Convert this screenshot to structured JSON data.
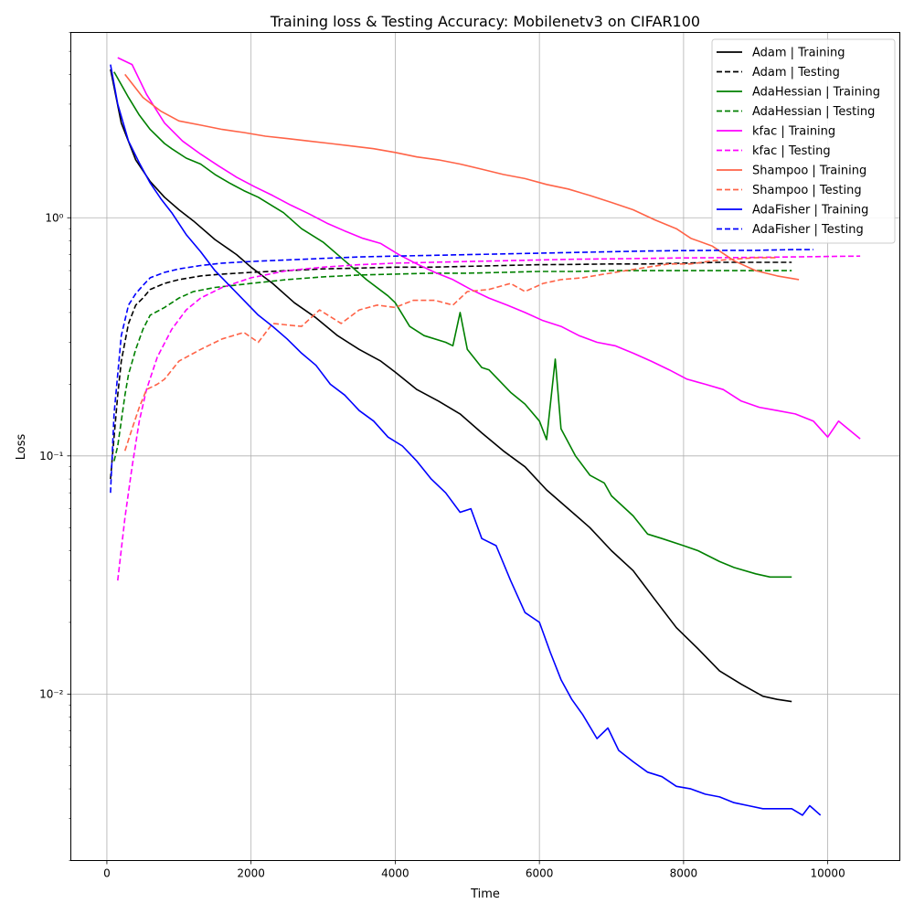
{
  "chart_data": {
    "type": "line",
    "title": "Training loss & Testing Accuracy: Mobilenetv3 on CIFAR100",
    "xlabel": "Time",
    "ylabel": "Loss",
    "xlim": [
      -500,
      11000
    ],
    "ylim": [
      0.002,
      6.0
    ],
    "yscale": "log",
    "grid": true,
    "legend_position": "top-right",
    "x_ticks": [
      0,
      2000,
      4000,
      6000,
      8000,
      10000
    ],
    "x_tick_labels": [
      "0",
      "2000",
      "4000",
      "6000",
      "8000",
      "10000"
    ],
    "y_ticks": [
      0.01,
      0.1,
      1
    ],
    "y_tick_labels": [
      "10⁻²",
      "10⁻¹",
      "10⁰"
    ],
    "series": [
      {
        "name": "Adam | Training",
        "color": "#000000",
        "dashed": false,
        "x": [
          50,
          200,
          400,
          600,
          800,
          1000,
          1200,
          1500,
          1800,
          2000,
          2300,
          2600,
          2900,
          3200,
          3500,
          3800,
          4000,
          4300,
          4600,
          4900,
          5200,
          5500,
          5800,
          6100,
          6400,
          6700,
          7000,
          7300,
          7600,
          7900,
          8200,
          8500,
          8800,
          9100,
          9300,
          9500
        ],
        "y": [
          4.2,
          2.5,
          1.75,
          1.42,
          1.22,
          1.08,
          0.97,
          0.81,
          0.7,
          0.62,
          0.53,
          0.44,
          0.38,
          0.32,
          0.28,
          0.25,
          0.225,
          0.19,
          0.17,
          0.15,
          0.125,
          0.105,
          0.09,
          0.072,
          0.06,
          0.05,
          0.04,
          0.033,
          0.025,
          0.019,
          0.0155,
          0.0125,
          0.011,
          0.0098,
          0.0095,
          0.0093
        ]
      },
      {
        "name": "Adam | Testing",
        "color": "#000000",
        "dashed": true,
        "x": [
          50,
          100,
          150,
          200,
          300,
          400,
          500,
          600,
          800,
          1000,
          1300,
          1600,
          2000,
          2500,
          3000,
          3500,
          4000,
          4500,
          5000,
          5500,
          6000,
          6500,
          7000,
          7500,
          8000,
          8500,
          9000,
          9500
        ],
        "y": [
          0.08,
          0.12,
          0.18,
          0.25,
          0.36,
          0.43,
          0.46,
          0.5,
          0.53,
          0.55,
          0.57,
          0.58,
          0.59,
          0.6,
          0.61,
          0.615,
          0.62,
          0.62,
          0.625,
          0.63,
          0.635,
          0.637,
          0.64,
          0.64,
          0.645,
          0.65,
          0.65,
          0.65
        ]
      },
      {
        "name": "AdaHessian | Training",
        "color": "#008000",
        "dashed": false,
        "x": [
          100,
          300,
          450,
          600,
          800,
          900,
          1100,
          1300,
          1500,
          1700,
          1900,
          2100,
          2300,
          2450,
          2700,
          3000,
          3300,
          3600,
          3900,
          4000,
          4200,
          4400,
          4700,
          4800,
          4900,
          5000,
          5200,
          5300,
          5600,
          5800,
          6000,
          6100,
          6220,
          6300,
          6500,
          6700,
          6900,
          7000,
          7300,
          7500,
          7700,
          8000,
          8200,
          8500,
          8700,
          9000,
          9200,
          9500
        ],
        "y": [
          4.1,
          3.2,
          2.7,
          2.35,
          2.05,
          1.95,
          1.78,
          1.68,
          1.52,
          1.4,
          1.3,
          1.22,
          1.12,
          1.05,
          0.9,
          0.79,
          0.66,
          0.55,
          0.47,
          0.44,
          0.35,
          0.32,
          0.3,
          0.29,
          0.4,
          0.28,
          0.235,
          0.23,
          0.185,
          0.165,
          0.14,
          0.117,
          0.255,
          0.13,
          0.1,
          0.083,
          0.077,
          0.068,
          0.056,
          0.047,
          0.045,
          0.042,
          0.04,
          0.036,
          0.034,
          0.032,
          0.031,
          0.031
        ]
      },
      {
        "name": "AdaHessian | Testing",
        "color": "#008000",
        "dashed": true,
        "x": [
          100,
          150,
          200,
          250,
          300,
          400,
          500,
          600,
          800,
          1000,
          1200,
          1500,
          2000,
          2500,
          3000,
          3500,
          4000,
          4500,
          5000,
          5500,
          6000,
          6500,
          7000,
          7500,
          8000,
          8500,
          9000,
          9500
        ],
        "y": [
          0.095,
          0.11,
          0.14,
          0.18,
          0.22,
          0.28,
          0.34,
          0.39,
          0.42,
          0.46,
          0.49,
          0.51,
          0.53,
          0.55,
          0.565,
          0.575,
          0.58,
          0.585,
          0.585,
          0.59,
          0.595,
          0.595,
          0.6,
          0.6,
          0.6,
          0.6,
          0.6,
          0.6
        ]
      },
      {
        "name": "kfac | Training",
        "color": "#ff00ff",
        "dashed": false,
        "x": [
          150,
          350,
          550,
          800,
          1050,
          1300,
          1550,
          1800,
          2050,
          2300,
          2550,
          2800,
          3050,
          3300,
          3550,
          3800,
          4050,
          4300,
          4550,
          4800,
          5050,
          5300,
          5550,
          5800,
          6050,
          6300,
          6550,
          6800,
          7050,
          7300,
          7550,
          7800,
          8050,
          8300,
          8550,
          8800,
          9050,
          9300,
          9550,
          9800,
          10000,
          10150,
          10450
        ],
        "y": [
          4.7,
          4.4,
          3.3,
          2.5,
          2.1,
          1.85,
          1.65,
          1.48,
          1.35,
          1.24,
          1.13,
          1.04,
          0.95,
          0.88,
          0.82,
          0.78,
          0.7,
          0.64,
          0.59,
          0.55,
          0.5,
          0.46,
          0.43,
          0.4,
          0.37,
          0.35,
          0.32,
          0.3,
          0.29,
          0.27,
          0.25,
          0.23,
          0.21,
          0.2,
          0.19,
          0.17,
          0.16,
          0.155,
          0.15,
          0.14,
          0.12,
          0.14,
          0.118
        ]
      },
      {
        "name": "kfac | Testing",
        "color": "#ff00ff",
        "dashed": true,
        "x": [
          150,
          250,
          350,
          450,
          550,
          700,
          900,
          1100,
          1300,
          1600,
          2000,
          2500,
          3000,
          3500,
          4000,
          4500,
          5000,
          5500,
          6000,
          6500,
          7000,
          7500,
          8000,
          8500,
          9000,
          9500,
          10000,
          10450
        ],
        "y": [
          0.03,
          0.055,
          0.09,
          0.14,
          0.19,
          0.26,
          0.34,
          0.41,
          0.46,
          0.51,
          0.56,
          0.6,
          0.62,
          0.635,
          0.645,
          0.65,
          0.655,
          0.66,
          0.665,
          0.67,
          0.672,
          0.675,
          0.678,
          0.68,
          0.682,
          0.685,
          0.688,
          0.69
        ]
      },
      {
        "name": "Shampoo | Training",
        "color": "#ff6347",
        "dashed": false,
        "x": [
          250,
          500,
          750,
          1000,
          1300,
          1600,
          1900,
          2200,
          2500,
          2800,
          3100,
          3400,
          3700,
          4000,
          4300,
          4600,
          4900,
          5200,
          5500,
          5800,
          6100,
          6400,
          6700,
          7000,
          7300,
          7600,
          7900,
          8100,
          8400,
          8700,
          9000,
          9300,
          9600
        ],
        "y": [
          4.0,
          3.2,
          2.8,
          2.55,
          2.45,
          2.35,
          2.28,
          2.2,
          2.15,
          2.1,
          2.05,
          2.0,
          1.95,
          1.88,
          1.8,
          1.75,
          1.68,
          1.6,
          1.52,
          1.46,
          1.38,
          1.32,
          1.24,
          1.16,
          1.08,
          0.98,
          0.9,
          0.82,
          0.76,
          0.66,
          0.6,
          0.57,
          0.55
        ]
      },
      {
        "name": "Shampoo | Testing",
        "color": "#ff6347",
        "dashed": true,
        "x": [
          250,
          350,
          450,
          550,
          700,
          800,
          1000,
          1300,
          1600,
          1900,
          2100,
          2300,
          2700,
          2950,
          3250,
          3500,
          3750,
          4000,
          4250,
          4550,
          4800,
          5000,
          5300,
          5600,
          5800,
          6050,
          6300,
          6600,
          6900,
          7200,
          7500,
          7800,
          8100,
          8400,
          8700,
          9000,
          9300
        ],
        "y": [
          0.105,
          0.13,
          0.16,
          0.19,
          0.2,
          0.21,
          0.25,
          0.28,
          0.31,
          0.33,
          0.3,
          0.36,
          0.35,
          0.41,
          0.36,
          0.41,
          0.43,
          0.42,
          0.45,
          0.45,
          0.43,
          0.49,
          0.5,
          0.53,
          0.49,
          0.53,
          0.55,
          0.56,
          0.58,
          0.6,
          0.62,
          0.64,
          0.64,
          0.66,
          0.67,
          0.68,
          0.68
        ]
      },
      {
        "name": "AdaFisher | Training",
        "color": "#0000ff",
        "dashed": false,
        "x": [
          50,
          150,
          300,
          450,
          600,
          750,
          900,
          1100,
          1300,
          1500,
          1700,
          1900,
          2100,
          2300,
          2500,
          2700,
          2900,
          3100,
          3300,
          3500,
          3700,
          3900,
          4100,
          4300,
          4500,
          4700,
          4900,
          5050,
          5200,
          5400,
          5600,
          5800,
          6000,
          6150,
          6300,
          6450,
          6600,
          6800,
          6950,
          7100,
          7300,
          7500,
          7700,
          7900,
          8100,
          8300,
          8500,
          8700,
          8900,
          9100,
          9300,
          9500,
          9650,
          9750,
          9900
        ],
        "y": [
          4.4,
          3.0,
          2.1,
          1.7,
          1.4,
          1.2,
          1.05,
          0.85,
          0.72,
          0.6,
          0.52,
          0.45,
          0.39,
          0.35,
          0.31,
          0.27,
          0.24,
          0.2,
          0.18,
          0.155,
          0.14,
          0.12,
          0.11,
          0.095,
          0.08,
          0.07,
          0.058,
          0.06,
          0.045,
          0.042,
          0.03,
          0.022,
          0.02,
          0.015,
          0.0115,
          0.0095,
          0.0082,
          0.0065,
          0.0072,
          0.0058,
          0.0052,
          0.0047,
          0.0045,
          0.0041,
          0.004,
          0.0038,
          0.0037,
          0.0035,
          0.0034,
          0.0033,
          0.0033,
          0.0033,
          0.0031,
          0.0034,
          0.0031
        ]
      },
      {
        "name": "AdaFisher | Testing",
        "color": "#0000ff",
        "dashed": true,
        "x": [
          50,
          100,
          150,
          200,
          300,
          400,
          500,
          600,
          800,
          1000,
          1300,
          1600,
          2000,
          2500,
          3000,
          3500,
          4000,
          4500,
          5000,
          5500,
          6000,
          6500,
          7000,
          7500,
          8000,
          8500,
          9000,
          9500,
          9800
        ],
        "y": [
          0.07,
          0.15,
          0.22,
          0.32,
          0.43,
          0.48,
          0.52,
          0.56,
          0.59,
          0.61,
          0.63,
          0.645,
          0.655,
          0.665,
          0.675,
          0.685,
          0.69,
          0.695,
          0.7,
          0.705,
          0.71,
          0.715,
          0.72,
          0.725,
          0.728,
          0.73,
          0.73,
          0.735,
          0.735
        ]
      }
    ]
  }
}
